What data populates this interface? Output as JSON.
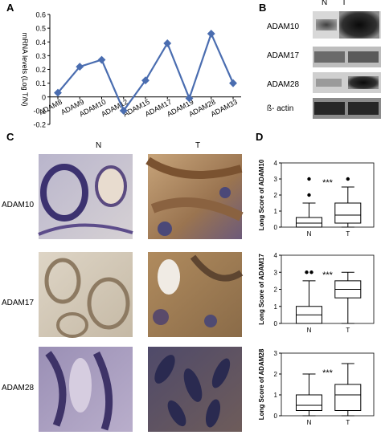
{
  "panels": {
    "A": "A",
    "B": "B",
    "C": "C",
    "D": "D"
  },
  "chart_data": [
    {
      "type": "line",
      "panel": "A",
      "categories": [
        "ADAM8",
        "ADAM9",
        "ADAM10",
        "ADAM12",
        "ADAM15",
        "ADAM17",
        "ADAM19",
        "ADAM28",
        "ADAM33"
      ],
      "values": [
        0.03,
        0.22,
        0.27,
        -0.1,
        0.12,
        0.39,
        -0.01,
        0.46,
        0.1
      ],
      "ylabel": "mRNA levels (Log T/N)",
      "yticks": [
        "-0.2",
        "-0.1",
        "0",
        "0.1",
        "0.2",
        "0.3",
        "0.4",
        "0.5",
        "0.6"
      ],
      "ylim": [
        -0.2,
        0.6
      ],
      "color": "#4a6db0"
    },
    {
      "type": "box",
      "panel": "D",
      "categories": [
        "N",
        "T"
      ],
      "ylabel": "Long Score of ADAM10",
      "yticks": [
        "0",
        "1",
        "2",
        "3",
        "4"
      ],
      "ylim": [
        0,
        4
      ],
      "significance": "***",
      "boxes": [
        {
          "whisker_low": 0,
          "q1": 0,
          "median": 0.25,
          "q3": 0.6,
          "whisker_high": 1.5,
          "outliers": [
            2.0,
            3.0
          ]
        },
        {
          "whisker_low": 0,
          "q1": 0.25,
          "median": 0.75,
          "q3": 1.5,
          "whisker_high": 2.5,
          "outliers": [
            3.0
          ]
        }
      ]
    },
    {
      "type": "box",
      "panel": "D",
      "categories": [
        "N",
        "T"
      ],
      "ylabel": "Long Score of ADAM17",
      "yticks": [
        "0",
        "1",
        "2",
        "3",
        "4"
      ],
      "ylim": [
        0,
        4
      ],
      "significance": "***",
      "boxes": [
        {
          "whisker_low": 0,
          "q1": 0.0,
          "median": 0.5,
          "q3": 1.0,
          "whisker_high": 2.5,
          "outliers": [
            3.0,
            3.0
          ]
        },
        {
          "whisker_low": 0,
          "q1": 1.5,
          "median": 2.0,
          "q3": 2.5,
          "whisker_high": 3.0,
          "outliers": []
        }
      ]
    },
    {
      "type": "box",
      "panel": "D",
      "categories": [
        "N",
        "T"
      ],
      "ylabel": "Long Score of ADAM28",
      "yticks": [
        "0",
        "1",
        "2",
        "3"
      ],
      "ylim": [
        0,
        3
      ],
      "significance": "***",
      "boxes": [
        {
          "whisker_low": 0,
          "q1": 0.25,
          "median": 0.5,
          "q3": 1.0,
          "whisker_high": 2.0,
          "outliers": []
        },
        {
          "whisker_low": 0,
          "q1": 0.25,
          "median": 1.0,
          "q3": 1.5,
          "whisker_high": 2.5,
          "outliers": []
        }
      ]
    }
  ],
  "western_blot": {
    "lanes": [
      "N",
      "T"
    ],
    "rows": [
      "ADAM10",
      "ADAM17",
      "ADAM28",
      "ß- actin"
    ]
  },
  "histology": {
    "columns": [
      "N",
      "T"
    ],
    "rows": [
      "ADAM10",
      "ADAM17",
      "ADAM28"
    ]
  }
}
